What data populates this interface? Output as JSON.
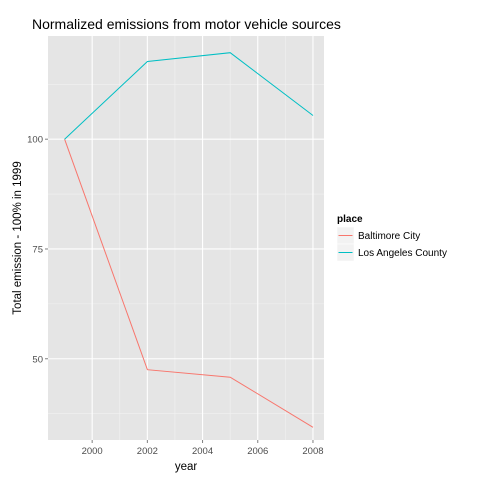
{
  "chart_data": {
    "type": "line",
    "title": "Normalized emissions from motor vehicle sources",
    "xlabel": "year",
    "ylabel": "Total emission - 100% in 1999",
    "x": [
      1999,
      2002,
      2005,
      2008
    ],
    "xlim": [
      1998.4,
      2008.4
    ],
    "ylim": [
      31.5,
      123.5
    ],
    "xticks": [
      2000,
      2002,
      2004,
      2006,
      2008
    ],
    "yticks": [
      50,
      75,
      100
    ],
    "grid": true,
    "legend": {
      "title": "place",
      "position": "right"
    },
    "series": [
      {
        "name": "Baltimore City",
        "color": "#F8766D",
        "values": [
          100,
          47.5,
          45.8,
          34.4
        ]
      },
      {
        "name": "Los Angeles County",
        "color": "#00BFC4",
        "values": [
          100,
          117.7,
          119.7,
          105.4
        ]
      }
    ]
  }
}
